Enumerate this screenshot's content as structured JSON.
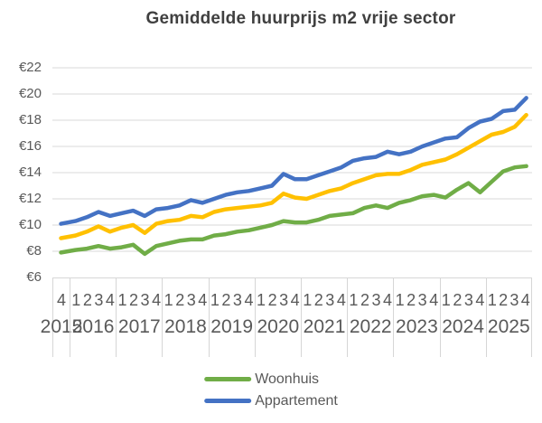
{
  "title": "Gemiddelde huurprijs m2 vrije sector",
  "colors": {
    "title_text": "#404040",
    "axis_text": "#595959",
    "gridline": "#D9D9D9",
    "axis_table_line": "#D6D6D6",
    "background": "#FFFFFF",
    "woonhuis_green": "#70AD47",
    "appartement_blue": "#4472C4",
    "middle_gold": "#FFC000"
  },
  "chart_data": {
    "type": "line",
    "title": "Gemiddelde huurprijs m2 vrije sector",
    "grid": true,
    "legend_position": "bottom",
    "y_axis": {
      "min": 6,
      "max": 22,
      "step": 2,
      "tick_prefix": "€",
      "tick_labels": [
        "€6",
        "€8",
        "€10",
        "€12",
        "€14",
        "€16",
        "€18",
        "€20",
        "€22"
      ]
    },
    "x_axis": {
      "level1": "kwartaal",
      "level2": "jaar",
      "years": [
        {
          "label": "2015",
          "quarters": [
            "4"
          ]
        },
        {
          "label": "2016",
          "quarters": [
            "1",
            "2",
            "3",
            "4"
          ]
        },
        {
          "label": "2017",
          "quarters": [
            "1",
            "2",
            "3",
            "4"
          ]
        },
        {
          "label": "2018",
          "quarters": [
            "1",
            "2",
            "3",
            "4"
          ]
        },
        {
          "label": "2019",
          "quarters": [
            "1",
            "2",
            "3",
            "4"
          ]
        },
        {
          "label": "2020",
          "quarters": [
            "1",
            "2",
            "3",
            "4"
          ]
        },
        {
          "label": "2021",
          "quarters": [
            "1",
            "2",
            "3",
            "4"
          ]
        },
        {
          "label": "2022",
          "quarters": [
            "1",
            "2",
            "3",
            "4"
          ]
        },
        {
          "label": "2023",
          "quarters": [
            "1",
            "2",
            "3",
            "4"
          ]
        },
        {
          "label": "2024",
          "quarters": [
            "1",
            "2",
            "3",
            "4"
          ]
        },
        {
          "label": "2025",
          "quarters": [
            "1",
            "2",
            "3",
            "4"
          ]
        }
      ]
    },
    "legend": [
      {
        "label": "Woonhuis",
        "color": "#70AD47"
      },
      {
        "label": "Appartement",
        "color": "#4472C4"
      }
    ],
    "series": [
      {
        "name": "Woonhuis",
        "color": "#70AD47",
        "legend_visible": true,
        "values": [
          7.9,
          8.1,
          8.2,
          8.4,
          8.2,
          8.3,
          8.5,
          7.8,
          8.4,
          8.6,
          8.8,
          8.9,
          8.9,
          9.2,
          9.3,
          9.5,
          9.6,
          9.8,
          10.0,
          10.3,
          10.2,
          10.2,
          10.4,
          10.7,
          10.8,
          10.9,
          11.3,
          11.5,
          11.3,
          11.7,
          11.9,
          12.2,
          12.3,
          12.1,
          12.7,
          13.2,
          12.5,
          13.3,
          14.1,
          14.4,
          14.5
        ]
      },
      {
        "name": "",
        "color": "#FFC000",
        "legend_visible": false,
        "values": [
          9.0,
          9.2,
          9.5,
          9.9,
          9.5,
          9.8,
          10.0,
          9.4,
          10.1,
          10.3,
          10.4,
          10.7,
          10.6,
          11.0,
          11.2,
          11.3,
          11.4,
          11.5,
          11.7,
          12.4,
          12.1,
          12.0,
          12.3,
          12.6,
          12.8,
          13.2,
          13.5,
          13.8,
          13.9,
          13.9,
          14.2,
          14.6,
          14.8,
          15.0,
          15.4,
          15.9,
          16.4,
          16.9,
          17.1,
          17.5,
          18.4
        ]
      },
      {
        "name": "Appartement",
        "color": "#4472C4",
        "legend_visible": true,
        "values": [
          10.1,
          10.3,
          10.6,
          11.0,
          10.7,
          10.9,
          11.1,
          10.7,
          11.2,
          11.3,
          11.5,
          11.9,
          11.7,
          12.0,
          12.3,
          12.5,
          12.6,
          12.8,
          13.0,
          13.9,
          13.5,
          13.5,
          13.8,
          14.1,
          14.4,
          14.9,
          15.1,
          15.2,
          15.6,
          15.4,
          15.6,
          16.0,
          16.3,
          16.6,
          16.7,
          17.4,
          17.9,
          18.1,
          18.7,
          18.8,
          19.7
        ]
      }
    ]
  }
}
